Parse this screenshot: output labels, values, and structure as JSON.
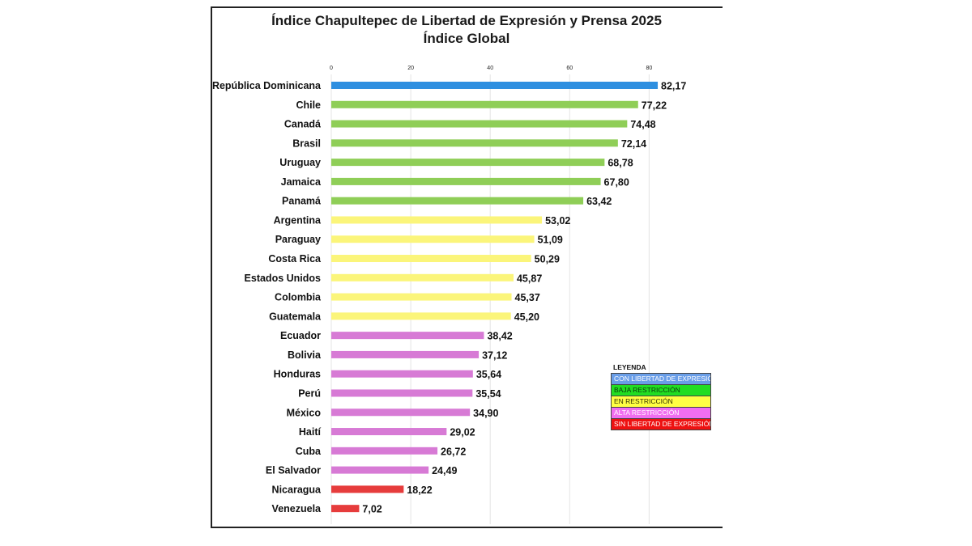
{
  "chart_data": {
    "type": "bar",
    "orientation": "horizontal",
    "title": "Índice Chapultepec de Libertad de Expresión y Prensa 2025",
    "subtitle": "Índice Global",
    "xlim": [
      0,
      90
    ],
    "ticks": [
      0,
      20,
      40,
      60,
      80
    ],
    "tick_labels": [
      "0",
      "20",
      "40",
      "60",
      "80"
    ],
    "grid": true,
    "categories": [
      "República Dominicana",
      "Chile",
      "Canadá",
      "Brasil",
      "Uruguay",
      "Jamaica",
      "Panamá",
      "Argentina",
      "Paraguay",
      "Costa Rica",
      "Estados Unidos",
      "Colombia",
      "Guatemala",
      "Ecuador",
      "Bolivia",
      "Honduras",
      "Perú",
      "México",
      "Haití",
      "Cuba",
      "El Salvador",
      "Nicaragua",
      "Venezuela"
    ],
    "values": [
      82.17,
      77.22,
      74.48,
      72.14,
      68.78,
      67.8,
      63.42,
      53.02,
      51.09,
      50.29,
      45.87,
      45.37,
      45.2,
      38.42,
      37.12,
      35.64,
      35.54,
      34.9,
      29.02,
      26.72,
      24.49,
      18.22,
      7.02
    ],
    "value_labels": [
      "82,17",
      "77,22",
      "74,48",
      "72,14",
      "68,78",
      "67,80",
      "63,42",
      "53,02",
      "51,09",
      "50,29",
      "45,87",
      "45,37",
      "45,20",
      "38,42",
      "37,12",
      "35,64",
      "35,54",
      "34,90",
      "29,02",
      "26,72",
      "24,49",
      "18,22",
      "7,02"
    ],
    "categories_group": [
      "libre",
      "baja",
      "baja",
      "baja",
      "baja",
      "baja",
      "baja",
      "en",
      "en",
      "en",
      "en",
      "en",
      "en",
      "alta",
      "alta",
      "alta",
      "alta",
      "alta",
      "alta",
      "alta",
      "alta",
      "sin",
      "sin"
    ],
    "group_colors": {
      "libre": "#2e8fe0",
      "baja": "#8fce57",
      "en": "#fbf57a",
      "alta": "#d77ad5",
      "sin": "#e63c3c"
    },
    "legend": {
      "title": "LEYENDA",
      "position": "bottom-right",
      "items": [
        {
          "label": "CON LIBERTAD DE EXPRESIÓN",
          "color": "#6a9ee8",
          "text_color": "#ffffff"
        },
        {
          "label": "BAJA RESTRICCIÓN",
          "color": "#22dd22",
          "text_color": "#0a3a0a"
        },
        {
          "label": "EN RESTRICCIÓN",
          "color": "#ffff44",
          "text_color": "#333300"
        },
        {
          "label": "ALTA RESTRICCIÓN",
          "color": "#f06ef0",
          "text_color": "#ffffff"
        },
        {
          "label": "SIN LIBERTAD DE EXPRESIÓN",
          "color": "#ee1111",
          "text_color": "#ffffff"
        }
      ]
    }
  }
}
